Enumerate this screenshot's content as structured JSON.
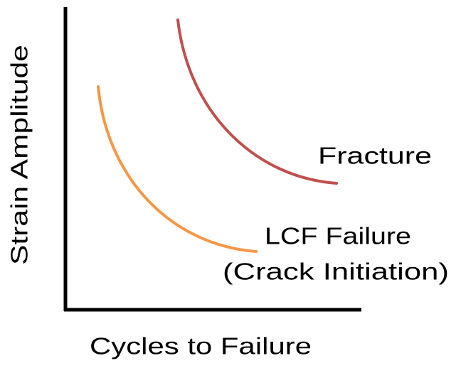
{
  "axes": {
    "y_label": "Strain Amplitude",
    "x_label": "Cycles to Failure"
  },
  "curves": [
    {
      "lines": [
        "Fracture"
      ]
    },
    {
      "lines": [
        "LCF Failure",
        "(Crack Initiation)"
      ]
    }
  ]
}
